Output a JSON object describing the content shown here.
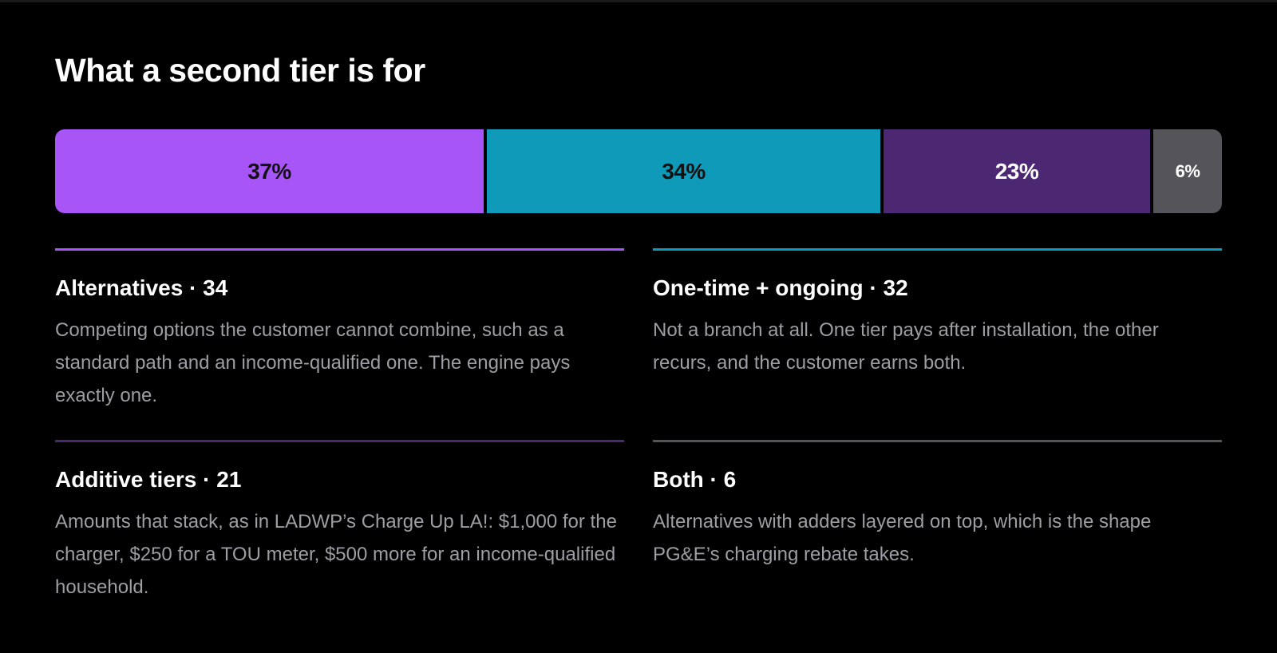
{
  "title": "What a second tier is for",
  "chart_data": {
    "type": "bar",
    "orientation": "horizontal-stacked",
    "title": "What a second tier is for",
    "unit": "%",
    "segments": [
      {
        "value": 37,
        "label": "37%",
        "color": "#a855f7",
        "label_color": "#111111",
        "label_size": 28
      },
      {
        "value": 34,
        "label": "34%",
        "color": "#0e9ab8",
        "label_color": "#111111",
        "label_size": 28
      },
      {
        "value": 23,
        "label": "23%",
        "color": "#4c2872",
        "label_color": "#ffffff",
        "label_size": 28
      },
      {
        "value": 6,
        "label": "6%",
        "color": "#545459",
        "label_color": "#ffffff",
        "label_size": 22
      }
    ]
  },
  "cards": [
    {
      "heading": "Alternatives · 34",
      "body": "Competing options the customer cannot combine, such as a standard path and an income-qualified one. The engine pays exactly one.",
      "color": "#a855f7"
    },
    {
      "heading": "One-time + ongoing · 32",
      "body": "Not a branch at all. One tier pays after installation, the other recurs, and the customer earns both.",
      "color": "#0e9ab8"
    },
    {
      "heading": "Additive tiers · 21",
      "body": "Amounts that stack, as in LADWP’s Charge Up LA!: $1,000 for the charger, $250 for a TOU meter, $500 more for an income-qualified household.",
      "color": "#4c2872"
    },
    {
      "heading": "Both · 6",
      "body": "Alternatives with adders layered on top, which is the shape PG&E’s charging rebate takes.",
      "color": "#545459"
    }
  ]
}
